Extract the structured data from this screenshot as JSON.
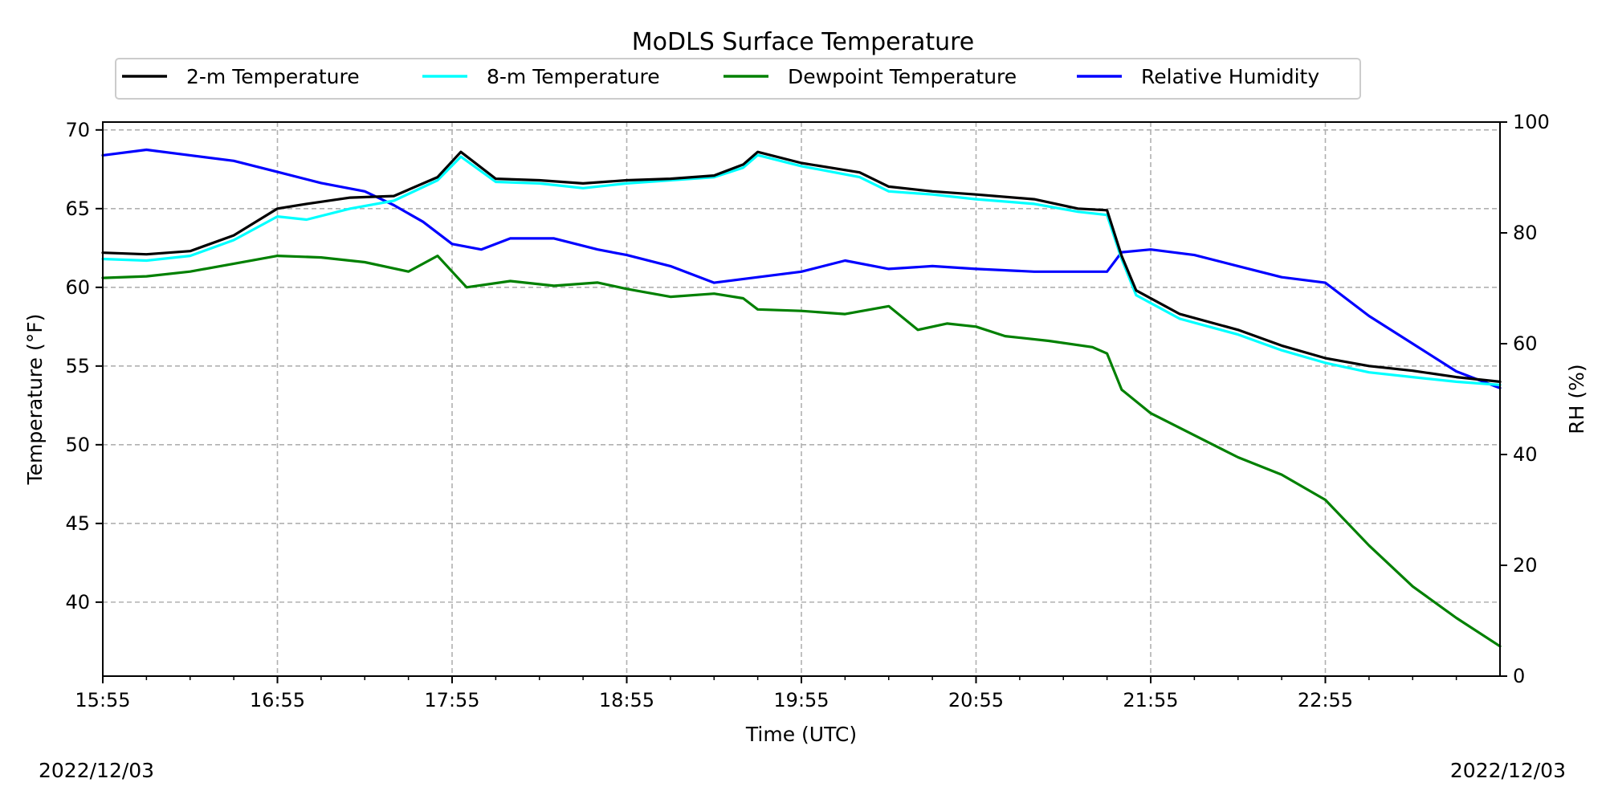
{
  "chart_data": {
    "type": "line",
    "title": "MoDLS Surface Temperature",
    "xlabel": "Time (UTC)",
    "ylabel": "Temperature (°F)",
    "y2label": "RH (%)",
    "x_start_label": "15:55",
    "xticks": [
      "15:55",
      "16:55",
      "17:55",
      "18:55",
      "19:55",
      "20:55",
      "21:55",
      "22:55"
    ],
    "yticks": [
      40,
      45,
      50,
      55,
      60,
      65,
      70
    ],
    "y2ticks": [
      0,
      20,
      40,
      60,
      80,
      100
    ],
    "ylim": [
      35.3,
      70.5
    ],
    "y2lim": [
      0,
      100
    ],
    "grid": true,
    "legend_position": "top",
    "date_left": "2022/12/03",
    "date_right": "2022/12/03",
    "series": [
      {
        "name": "2-m Temperature",
        "color": "#000000",
        "axis": "left",
        "x": [
          "15:55",
          "16:10",
          "16:25",
          "16:40",
          "16:55",
          "17:05",
          "17:20",
          "17:35",
          "17:50",
          "17:58",
          "18:10",
          "18:25",
          "18:40",
          "18:55",
          "19:10",
          "19:25",
          "19:35",
          "19:40",
          "19:55",
          "20:15",
          "20:25",
          "20:40",
          "20:55",
          "21:15",
          "21:30",
          "21:40",
          "21:45",
          "21:50",
          "22:05",
          "22:25",
          "22:40",
          "22:55",
          "23:10",
          "23:25",
          "23:40",
          "23:55"
        ],
        "y": [
          62.2,
          62.1,
          62.3,
          63.3,
          65.0,
          65.3,
          65.7,
          65.8,
          67.0,
          68.6,
          66.9,
          66.8,
          66.6,
          66.8,
          66.9,
          67.1,
          67.8,
          68.6,
          67.9,
          67.3,
          66.4,
          66.1,
          65.9,
          65.6,
          65.0,
          64.9,
          62.0,
          59.8,
          58.3,
          57.3,
          56.3,
          55.5,
          55.0,
          54.7,
          54.3,
          54.0
        ]
      },
      {
        "name": "8-m Temperature",
        "color": "#00ffff",
        "axis": "left",
        "x": [
          "15:55",
          "16:10",
          "16:25",
          "16:40",
          "16:55",
          "17:05",
          "17:20",
          "17:35",
          "17:50",
          "17:58",
          "18:10",
          "18:25",
          "18:40",
          "18:55",
          "19:10",
          "19:25",
          "19:35",
          "19:40",
          "19:55",
          "20:15",
          "20:25",
          "20:40",
          "20:55",
          "21:15",
          "21:30",
          "21:40",
          "21:45",
          "21:50",
          "22:05",
          "22:25",
          "22:40",
          "22:55",
          "23:10",
          "23:25",
          "23:40",
          "23:55"
        ],
        "y": [
          61.8,
          61.7,
          62.0,
          63.0,
          64.5,
          64.3,
          65.0,
          65.5,
          66.8,
          68.3,
          66.7,
          66.6,
          66.3,
          66.6,
          66.8,
          67.0,
          67.6,
          68.4,
          67.7,
          67.0,
          66.1,
          65.9,
          65.6,
          65.3,
          64.8,
          64.6,
          61.8,
          59.5,
          58.0,
          57.0,
          56.0,
          55.2,
          54.6,
          54.3,
          54.0,
          53.8
        ]
      },
      {
        "name": "Dewpoint Temperature",
        "color": "#008000",
        "axis": "left",
        "x": [
          "15:55",
          "16:10",
          "16:25",
          "16:40",
          "16:55",
          "17:10",
          "17:25",
          "17:40",
          "17:50",
          "18:00",
          "18:15",
          "18:30",
          "18:45",
          "18:55",
          "19:10",
          "19:25",
          "19:35",
          "19:40",
          "19:55",
          "20:10",
          "20:25",
          "20:35",
          "20:45",
          "20:55",
          "21:05",
          "21:20",
          "21:35",
          "21:40",
          "21:45",
          "21:55",
          "22:10",
          "22:25",
          "22:40",
          "22:55",
          "23:10",
          "23:25",
          "23:40",
          "23:55"
        ],
        "y": [
          60.6,
          60.7,
          61.0,
          61.5,
          62.0,
          61.9,
          61.6,
          61.0,
          62.0,
          60.0,
          60.4,
          60.1,
          60.3,
          59.9,
          59.4,
          59.6,
          59.3,
          58.6,
          58.5,
          58.3,
          58.8,
          57.3,
          57.7,
          57.5,
          56.9,
          56.6,
          56.2,
          55.8,
          53.5,
          52.0,
          50.6,
          49.2,
          48.1,
          46.5,
          43.6,
          41.0,
          39.0,
          37.2
        ]
      },
      {
        "name": "Relative Humidity",
        "color": "#0000ff",
        "axis": "right",
        "x": [
          "15:55",
          "16:10",
          "16:25",
          "16:40",
          "16:55",
          "17:10",
          "17:25",
          "17:35",
          "17:45",
          "17:55",
          "18:05",
          "18:15",
          "18:30",
          "18:45",
          "18:55",
          "19:10",
          "19:25",
          "19:40",
          "19:55",
          "20:10",
          "20:25",
          "20:40",
          "20:55",
          "21:15",
          "21:30",
          "21:40",
          "21:45",
          "21:55",
          "22:10",
          "22:25",
          "22:40",
          "22:55",
          "23:10",
          "23:25",
          "23:40",
          "23:55"
        ],
        "y": [
          94.0,
          95.0,
          94.0,
          93.0,
          91.0,
          89.0,
          87.5,
          85.0,
          82.0,
          78.0,
          77.0,
          79.0,
          79.0,
          77.0,
          76.0,
          74.0,
          71.0,
          72.0,
          73.0,
          75.0,
          73.5,
          74.0,
          73.5,
          73.0,
          73.0,
          73.0,
          76.5,
          77.0,
          76.0,
          74.0,
          72.0,
          71.0,
          65.0,
          60.0,
          55.0,
          52.0
        ]
      }
    ]
  }
}
